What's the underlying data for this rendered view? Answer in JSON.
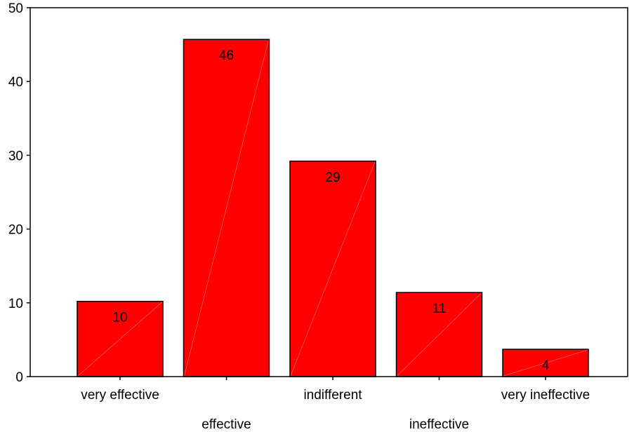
{
  "chart_data": {
    "type": "bar",
    "categories": [
      "very effective",
      "effective",
      "indifferent",
      "ineffective",
      "very ineffective"
    ],
    "values": [
      10.2,
      45.7,
      29.2,
      11.4,
      3.7
    ],
    "data_labels": [
      "10",
      "46",
      "29",
      "11",
      "4"
    ],
    "ylim": [
      0,
      50
    ],
    "yticks": [
      0,
      10,
      20,
      30,
      40,
      50
    ],
    "title": "",
    "xlabel": "",
    "ylabel": "",
    "grid": false,
    "legend": "none",
    "bar_color": "#ff0000",
    "bar_edge_color": "#000000"
  }
}
